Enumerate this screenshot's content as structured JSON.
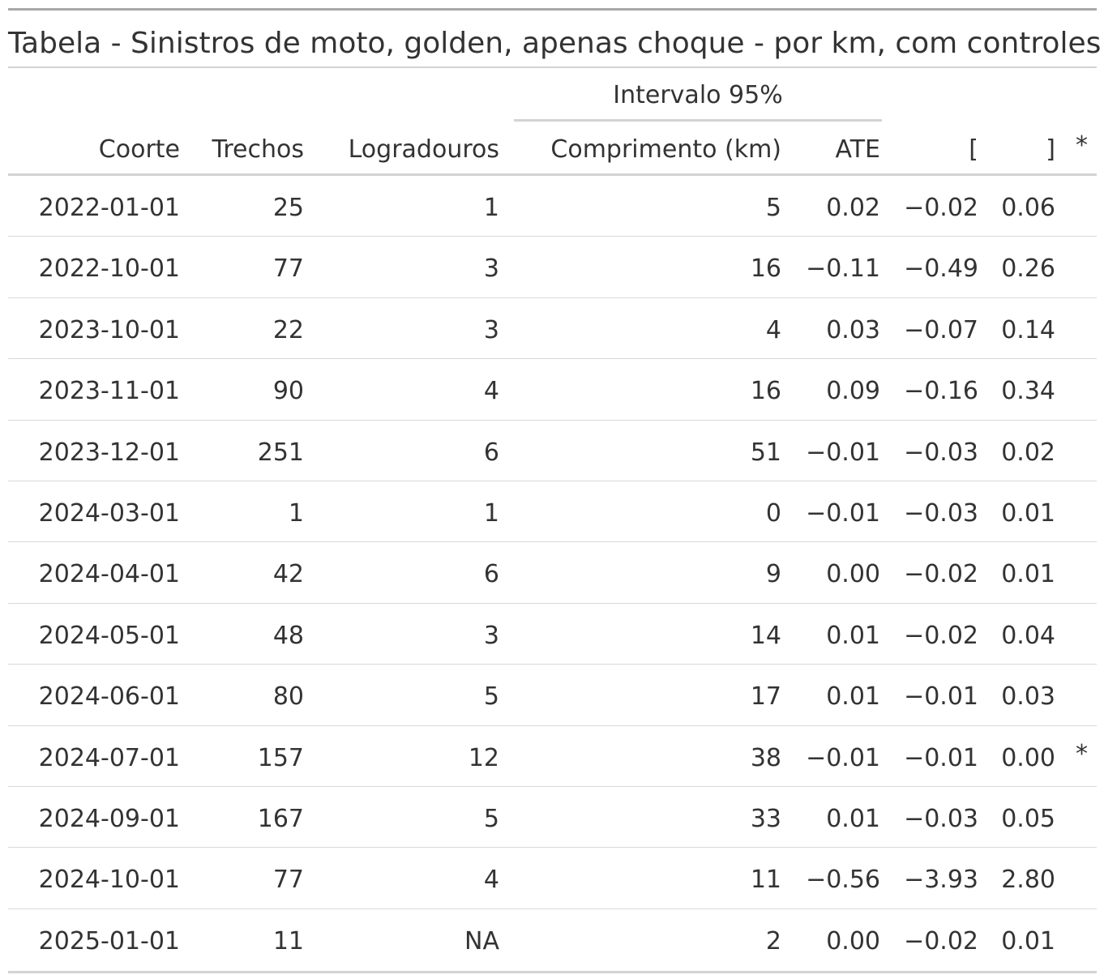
{
  "table": {
    "title": "Tabela - Sinistros de moto, golden, apenas choque - por km, com controles",
    "spanner": "Intervalo 95%",
    "columns": {
      "coorte": "Coorte",
      "trechos": "Trechos",
      "logradouros": "Logradouros",
      "comprimento": "Comprimento (km)",
      "ate": "ATE",
      "lo": "[",
      "hi": "]",
      "sig": "*"
    },
    "rows": [
      {
        "coorte": "2022-01-01",
        "trechos": "25",
        "logradouros": "1",
        "comprimento": "5",
        "ate": "0.02",
        "lo": "−0.02",
        "hi": "0.06",
        "sig": ""
      },
      {
        "coorte": "2022-10-01",
        "trechos": "77",
        "logradouros": "3",
        "comprimento": "16",
        "ate": "−0.11",
        "lo": "−0.49",
        "hi": "0.26",
        "sig": ""
      },
      {
        "coorte": "2023-10-01",
        "trechos": "22",
        "logradouros": "3",
        "comprimento": "4",
        "ate": "0.03",
        "lo": "−0.07",
        "hi": "0.14",
        "sig": ""
      },
      {
        "coorte": "2023-11-01",
        "trechos": "90",
        "logradouros": "4",
        "comprimento": "16",
        "ate": "0.09",
        "lo": "−0.16",
        "hi": "0.34",
        "sig": ""
      },
      {
        "coorte": "2023-12-01",
        "trechos": "251",
        "logradouros": "6",
        "comprimento": "51",
        "ate": "−0.01",
        "lo": "−0.03",
        "hi": "0.02",
        "sig": ""
      },
      {
        "coorte": "2024-03-01",
        "trechos": "1",
        "logradouros": "1",
        "comprimento": "0",
        "ate": "−0.01",
        "lo": "−0.03",
        "hi": "0.01",
        "sig": ""
      },
      {
        "coorte": "2024-04-01",
        "trechos": "42",
        "logradouros": "6",
        "comprimento": "9",
        "ate": "0.00",
        "lo": "−0.02",
        "hi": "0.01",
        "sig": ""
      },
      {
        "coorte": "2024-05-01",
        "trechos": "48",
        "logradouros": "3",
        "comprimento": "14",
        "ate": "0.01",
        "lo": "−0.02",
        "hi": "0.04",
        "sig": ""
      },
      {
        "coorte": "2024-06-01",
        "trechos": "80",
        "logradouros": "5",
        "comprimento": "17",
        "ate": "0.01",
        "lo": "−0.01",
        "hi": "0.03",
        "sig": ""
      },
      {
        "coorte": "2024-07-01",
        "trechos": "157",
        "logradouros": "12",
        "comprimento": "38",
        "ate": "−0.01",
        "lo": "−0.01",
        "hi": "0.00",
        "sig": "*"
      },
      {
        "coorte": "2024-09-01",
        "trechos": "167",
        "logradouros": "5",
        "comprimento": "33",
        "ate": "0.01",
        "lo": "−0.03",
        "hi": "0.05",
        "sig": ""
      },
      {
        "coorte": "2024-10-01",
        "trechos": "77",
        "logradouros": "4",
        "comprimento": "11",
        "ate": "−0.56",
        "lo": "−3.93",
        "hi": "2.80",
        "sig": ""
      },
      {
        "coorte": "2025-01-01",
        "trechos": "11",
        "logradouros": "NA",
        "comprimento": "2",
        "ate": "0.00",
        "lo": "−0.02",
        "hi": "0.01",
        "sig": ""
      }
    ]
  }
}
